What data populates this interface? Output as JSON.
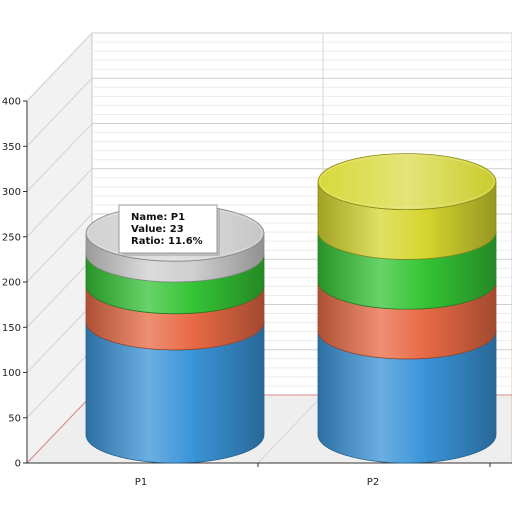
{
  "chart_data": {
    "type": "bar",
    "subtype": "stacked-cylinder-3d",
    "title": "",
    "xlabel": "",
    "ylabel": "",
    "ylim": [
      0,
      400
    ],
    "y_ticks": [
      "0",
      "50",
      "100",
      "150",
      "200",
      "250",
      "300",
      "350",
      "400"
    ],
    "categories": [
      "P1",
      "P2"
    ],
    "grid": true,
    "series": [
      {
        "color": "#3a94d8",
        "values": [
          125,
          115
        ]
      },
      {
        "color": "#e86a45",
        "values": [
          40,
          55
        ]
      },
      {
        "color": "#35c435",
        "values": [
          35,
          55
        ]
      },
      {
        "color": "#cfcfcf",
        "values": [
          23,
          0
        ]
      },
      {
        "color": "#d6d630",
        "values": [
          0,
          55
        ]
      }
    ],
    "tooltip": {
      "name_line": "Name: P1",
      "value_line": "Value: 23",
      "ratio_line": "Ratio: 11.6%"
    }
  }
}
